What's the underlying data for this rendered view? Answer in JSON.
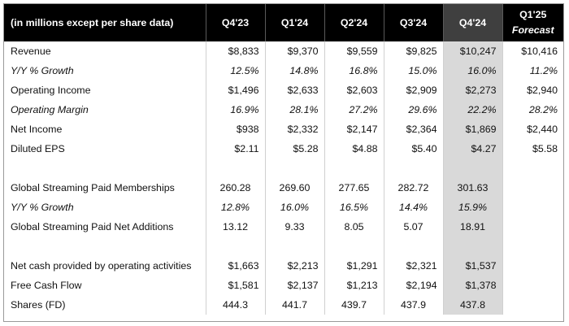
{
  "headers": {
    "label": "(in millions except per share data)",
    "periods": [
      "Q4'23",
      "Q1'24",
      "Q2'24",
      "Q3'24",
      "Q4'24"
    ],
    "forecast_line1": "Q1'25",
    "forecast_line2": "Forecast"
  },
  "rows": {
    "revenue": {
      "label": "Revenue",
      "values": [
        "$8,833",
        "$9,370",
        "$9,559",
        "$9,825",
        "$10,247"
      ],
      "forecast": "$10,416"
    },
    "revenue_growth": {
      "label": "Y/Y % Growth",
      "values": [
        "12.5%",
        "14.8%",
        "16.8%",
        "15.0%",
        "16.0%"
      ],
      "forecast": "11.2%"
    },
    "operating_income": {
      "label": "Operating Income",
      "values": [
        "$1,496",
        "$2,633",
        "$2,603",
        "$2,909",
        "$2,273"
      ],
      "forecast": "$2,940"
    },
    "operating_margin": {
      "label": "Operating Margin",
      "values": [
        "16.9%",
        "28.1%",
        "27.2%",
        "29.6%",
        "22.2%"
      ],
      "forecast": "28.2%"
    },
    "net_income": {
      "label": "Net Income",
      "values": [
        "$938",
        "$2,332",
        "$2,147",
        "$2,364",
        "$1,869"
      ],
      "forecast": "$2,440"
    },
    "diluted_eps": {
      "label": "Diluted EPS",
      "values": [
        "$2.11",
        "$5.28",
        "$4.88",
        "$5.40",
        "$4.27"
      ],
      "forecast": "$5.58"
    },
    "paid_memberships": {
      "label": "Global Streaming Paid Memberships",
      "values": [
        "260.28",
        "269.60",
        "277.65",
        "282.72",
        "301.63"
      ],
      "forecast": ""
    },
    "memberships_growth": {
      "label": "Y/Y % Growth",
      "values": [
        "12.8%",
        "16.0%",
        "16.5%",
        "14.4%",
        "15.9%"
      ],
      "forecast": ""
    },
    "net_additions": {
      "label": "Global Streaming Paid Net Additions",
      "values": [
        "13.12",
        "9.33",
        "8.05",
        "5.07",
        "18.91"
      ],
      "forecast": ""
    },
    "operating_cash": {
      "label": "Net cash provided by operating activities",
      "values": [
        "$1,663",
        "$2,213",
        "$1,291",
        "$2,321",
        "$1,537"
      ],
      "forecast": ""
    },
    "free_cash_flow": {
      "label": "Free Cash Flow",
      "values": [
        "$1,581",
        "$2,137",
        "$1,213",
        "$2,194",
        "$1,378"
      ],
      "forecast": ""
    },
    "shares_fd": {
      "label": "Shares (FD)",
      "values": [
        "444.3",
        "441.7",
        "439.7",
        "437.9",
        "437.8"
      ],
      "forecast": ""
    }
  },
  "colors": {
    "header_bg": "#000000",
    "header_text": "#ffffff",
    "current_quarter_header_bg": "#3f3f3f",
    "current_quarter_column_bg": "#d9d9d9"
  }
}
